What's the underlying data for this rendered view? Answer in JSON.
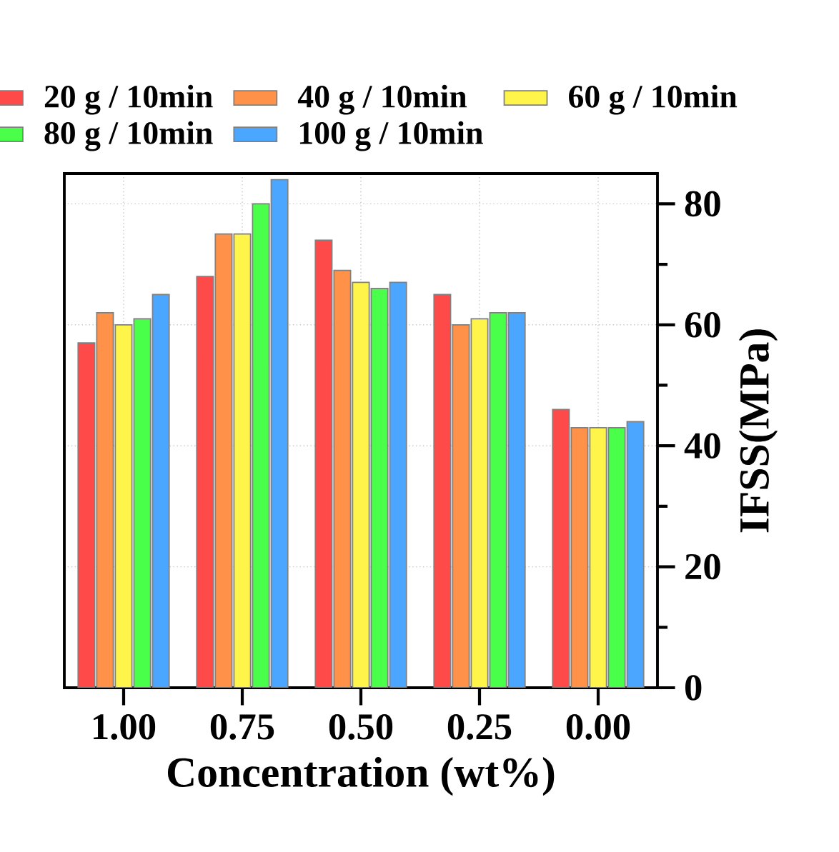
{
  "chart_data": {
    "type": "bar",
    "xlabel": "Concentration (wt%)",
    "ylabel": "IFSS(MPa)",
    "categories": [
      "1.00",
      "0.75",
      "0.50",
      "0.25",
      "0.00"
    ],
    "series": [
      {
        "name": "20 g / 10min",
        "color": "#ff4a4a",
        "values": [
          57,
          68,
          74,
          65,
          46
        ]
      },
      {
        "name": "40 g / 10min",
        "color": "#ff9248",
        "values": [
          62,
          75,
          69,
          60,
          43
        ]
      },
      {
        "name": "60 g / 10min",
        "color": "#fff44a",
        "values": [
          60,
          75,
          67,
          61,
          43
        ]
      },
      {
        "name": "80 g / 10min",
        "color": "#4aff4a",
        "values": [
          61,
          80,
          66,
          62,
          43
        ]
      },
      {
        "name": "100 g / 10min",
        "color": "#4aa6ff",
        "values": [
          65,
          84,
          67,
          62,
          44
        ]
      }
    ],
    "ylim": [
      0,
      85
    ],
    "yticks": [
      0,
      {
        "value": 10,
        "label": null
      },
      20,
      {
        "value": 30,
        "label": null
      },
      40,
      {
        "value": 50,
        "label": null
      },
      60,
      {
        "value": 70,
        "label": null
      },
      80
    ],
    "grid": true,
    "legend": "top"
  }
}
